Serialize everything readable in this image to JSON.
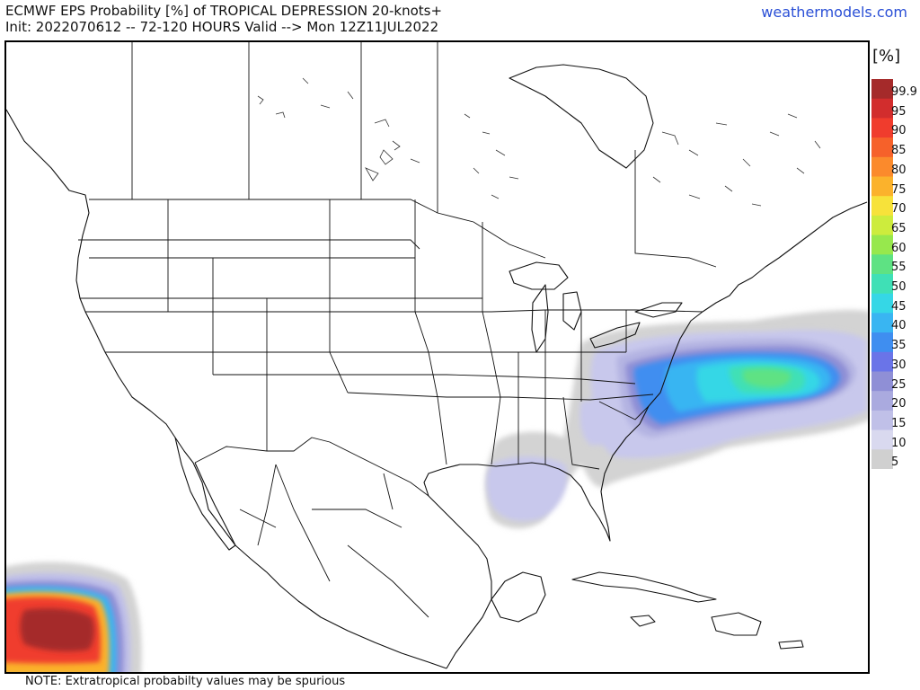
{
  "header": {
    "title_line1": "ECMWF EPS Probability [%] of TROPICAL DEPRESSION 20-knots+",
    "title_line2": "Init: 2022070612 -- 72-120 HOURS Valid --> Mon 12Z11JUL2022",
    "brand": "weathermodels.com"
  },
  "legend": {
    "unit": "[%]",
    "levels": [
      {
        "label": "99.9",
        "color": "#a52a2a"
      },
      {
        "label": "95",
        "color": "#d22d2d"
      },
      {
        "label": "90",
        "color": "#f03c2d"
      },
      {
        "label": "85",
        "color": "#f6612a"
      },
      {
        "label": "80",
        "color": "#fb8a2c"
      },
      {
        "label": "75",
        "color": "#fbb22c"
      },
      {
        "label": "70",
        "color": "#f7e23a"
      },
      {
        "label": "65",
        "color": "#cdec3d"
      },
      {
        "label": "60",
        "color": "#97e84d"
      },
      {
        "label": "55",
        "color": "#5ee283"
      },
      {
        "label": "50",
        "color": "#3fe0b6"
      },
      {
        "label": "45",
        "color": "#35d7e6"
      },
      {
        "label": "40",
        "color": "#39b5f2"
      },
      {
        "label": "35",
        "color": "#3f8ef0"
      },
      {
        "label": "30",
        "color": "#6a74e8"
      },
      {
        "label": "25",
        "color": "#8f8fd6"
      },
      {
        "label": "20",
        "color": "#aaaadf"
      },
      {
        "label": "15",
        "color": "#c0c0e8"
      },
      {
        "label": "10",
        "color": "#d9d9ef"
      },
      {
        "label": "5",
        "color": "#d0d0d0"
      }
    ]
  },
  "footer": {
    "note": "NOTE: Extratropical probabilty values may be spurious"
  }
}
